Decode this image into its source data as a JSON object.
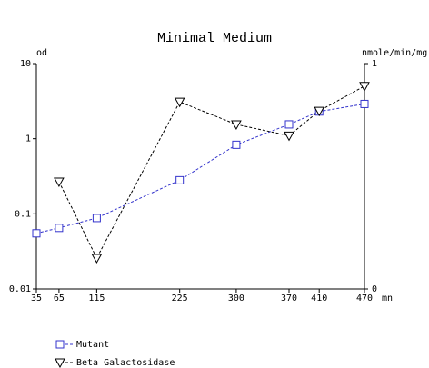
{
  "chart_data": {
    "type": "line",
    "title": "Minimal Medium",
    "ylabel": "od",
    "y2label": "nmole/min/mg",
    "xlabel": "mn",
    "ylog": true,
    "xlim": [
      35,
      470
    ],
    "xticks": [
      35,
      65,
      115,
      225,
      300,
      370,
      410,
      470
    ],
    "ylim": [
      0.01,
      10
    ],
    "yticks": [
      0.01,
      0.1,
      1,
      10
    ],
    "y2lim": [
      0,
      1
    ],
    "y2ticks": [
      0,
      1
    ],
    "series": [
      {
        "name": "Mutant",
        "color": "#3333cc",
        "marker": "square",
        "x": [
          35,
          65,
          115,
          225,
          300,
          370,
          410,
          470
        ],
        "values": [
          0.055,
          0.065,
          0.088,
          0.28,
          0.83,
          1.55,
          2.3,
          2.9
        ]
      },
      {
        "name": "Beta Galactosidase",
        "color": "#000000",
        "marker": "triangle-down",
        "axis": "y2",
        "x": [
          65,
          115,
          225,
          300,
          370,
          410,
          470
        ],
        "values": [
          0.476,
          0.137,
          0.83,
          0.73,
          0.68,
          0.79,
          0.9
        ]
      }
    ]
  }
}
